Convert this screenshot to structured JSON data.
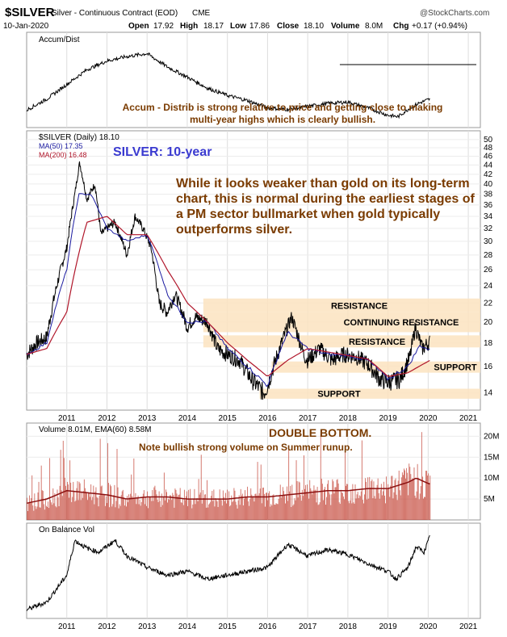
{
  "header": {
    "symbol": "$SILVER",
    "name": "Silver - Continuous Contract (EOD)",
    "exchange": "CME",
    "watermark": "@StockCharts.com",
    "date": "10-Jan-2020",
    "open_label": "Open",
    "open": "17.92",
    "high_label": "High",
    "high": "18.17",
    "low_label": "Low",
    "low": "17.86",
    "close_label": "Close",
    "close": "18.10",
    "volume_label": "Volume",
    "volume": "8.0M",
    "chg_label": "Chg",
    "chg": "+0.17 (+0.94%)"
  },
  "colors": {
    "price": "#000000",
    "ma50": "#1a1aa0",
    "ma200": "#b0162a",
    "volume": "#c0392b",
    "band": "#fbe3bf",
    "annotation": "#7a3b00",
    "title_blue": "#3a3ad0"
  },
  "chart_data": [
    {
      "type": "line",
      "panel": "Accum/Dist",
      "legend": "Accum/Dist",
      "x": [
        2010.0,
        2010.5,
        2011.0,
        2011.5,
        2012.0,
        2012.5,
        2013.0,
        2013.5,
        2014.0,
        2014.5,
        2015.0,
        2015.5,
        2016.0,
        2016.5,
        2017.0,
        2017.5,
        2018.0,
        2018.5,
        2019.0,
        2019.25,
        2019.5,
        2019.75,
        2020.04
      ],
      "y": [
        5,
        20,
        40,
        60,
        72,
        78,
        82,
        64,
        50,
        35,
        25,
        18,
        8,
        6,
        10,
        14,
        16,
        8,
        -2,
        -4,
        6,
        14,
        20
      ],
      "ylim": [
        0,
        100
      ],
      "note": "Accum - Distrib is strong relative to price and getting close to making multi-year highs which is clearly bullish."
    },
    {
      "type": "line",
      "panel": "Price",
      "legend": [
        "$SILVER (Daily) 18.10",
        "MA(50) 17.35",
        "MA(200) 16.48"
      ],
      "title": "SILVER: 10-year",
      "note": "While it looks weaker than gold on its long-term chart, this is normal during the earliest stages of a PM sector bullmarket when gold typically outperforms silver.",
      "series": [
        {
          "name": "$SILVER (Daily) 18.10",
          "x": [
            2010.0,
            2010.25,
            2010.5,
            2010.75,
            2011.0,
            2011.2,
            2011.32,
            2011.5,
            2011.7,
            2011.85,
            2012.0,
            2012.2,
            2012.5,
            2012.7,
            2012.9,
            2013.1,
            2013.3,
            2013.5,
            2013.7,
            2014.0,
            2014.2,
            2014.5,
            2014.75,
            2015.0,
            2015.3,
            2015.6,
            2015.9,
            2016.0,
            2016.3,
            2016.6,
            2016.9,
            2017.0,
            2017.3,
            2017.6,
            2017.9,
            2018.2,
            2018.5,
            2018.8,
            2019.0,
            2019.3,
            2019.55,
            2019.68,
            2019.85,
            2020.04
          ],
          "y": [
            17,
            18,
            18.5,
            24,
            29,
            38,
            44.5,
            37,
            40,
            31,
            32,
            33,
            28,
            34,
            32,
            29,
            22,
            21,
            23,
            19.5,
            20.5,
            20,
            17.5,
            17,
            16.5,
            15,
            14,
            14.5,
            17.5,
            20.5,
            17,
            16.5,
            17.5,
            16.5,
            17,
            16.8,
            16.2,
            15,
            14.8,
            15,
            16.8,
            19.5,
            17.5,
            18.1
          ]
        },
        {
          "name": "MA(50) 17.35",
          "x": [
            2010.0,
            2010.5,
            2011.0,
            2011.3,
            2011.6,
            2012.0,
            2012.5,
            2013.0,
            2013.5,
            2014.0,
            2014.5,
            2015.0,
            2015.5,
            2016.0,
            2016.5,
            2017.0,
            2017.5,
            2018.0,
            2018.5,
            2019.0,
            2019.5,
            2019.8,
            2020.04
          ],
          "y": [
            17,
            18,
            26,
            38,
            38,
            32,
            30,
            31,
            23,
            20,
            20,
            17.5,
            16,
            14.5,
            19,
            17.5,
            17,
            16.9,
            16.5,
            15,
            16,
            17.8,
            17.35
          ]
        },
        {
          "name": "MA(200) 16.48",
          "x": [
            2010.0,
            2010.5,
            2011.0,
            2011.5,
            2012.0,
            2012.5,
            2013.0,
            2013.5,
            2014.0,
            2014.5,
            2015.0,
            2015.5,
            2016.0,
            2016.5,
            2017.0,
            2017.5,
            2018.0,
            2018.5,
            2019.0,
            2019.5,
            2020.04
          ],
          "y": [
            17,
            17.5,
            21,
            33,
            34,
            31,
            31,
            26,
            22,
            20,
            18,
            16.5,
            15.2,
            16.5,
            17.5,
            17.2,
            16.9,
            16.6,
            15.2,
            15.5,
            16.48
          ]
        }
      ],
      "yticks": [
        14,
        16,
        18,
        20,
        22,
        24,
        26,
        28,
        30,
        32,
        34,
        36,
        38,
        40,
        42,
        44,
        46,
        48,
        50
      ],
      "ylim": [
        13,
        51
      ],
      "scale": "log",
      "bands": [
        {
          "label": "RESISTANCE",
          "from": 21.0,
          "to": 22.5,
          "start": 2014.4
        },
        {
          "label": "CONTINUING RESISTANCE",
          "from": 19.0,
          "to": 21.0,
          "start": 2014.4
        },
        {
          "label": "RESISTANCE",
          "from": 17.6,
          "to": 18.7,
          "start": 2014.4
        },
        {
          "label": "SUPPORT",
          "from": 15.5,
          "to": 16.4,
          "start": 2016.1
        },
        {
          "label": "SUPPORT",
          "from": 13.6,
          "to": 14.3,
          "start": 2015.8
        }
      ]
    },
    {
      "type": "bar",
      "panel": "Volume",
      "legend": "Volume 8.01M, EMA(60) 8.58M",
      "title": "DOUBLE BOTTOM.",
      "note": "Note bullish strong volume on Summer runup.",
      "x": [
        2010.0,
        2010.5,
        2011.0,
        2011.5,
        2012.0,
        2012.5,
        2013.0,
        2013.5,
        2014.0,
        2014.5,
        2015.0,
        2015.5,
        2016.0,
        2016.5,
        2017.0,
        2017.5,
        2018.0,
        2018.5,
        2019.0,
        2019.5,
        2019.7,
        2020.04
      ],
      "ema": [
        4,
        5,
        7,
        6.5,
        6,
        5,
        5.5,
        5.5,
        5,
        5,
        5,
        5.5,
        5.5,
        6,
        6.5,
        7,
        7,
        7.5,
        7.5,
        9,
        10,
        8.58
      ],
      "yticks_labels": [
        "5M",
        "10M",
        "15M",
        "20M"
      ],
      "yticks": [
        5,
        10,
        15,
        20
      ],
      "ylim": [
        0,
        22
      ]
    },
    {
      "type": "line",
      "panel": "On Balance Vol",
      "legend": "On Balance Vol",
      "x": [
        2010.0,
        2010.5,
        2011.0,
        2011.2,
        2011.5,
        2011.8,
        2012.2,
        2012.5,
        2013.0,
        2013.5,
        2014.0,
        2014.5,
        2015.0,
        2015.5,
        2016.0,
        2016.5,
        2017.0,
        2017.5,
        2018.0,
        2018.5,
        2019.0,
        2019.2,
        2019.5,
        2019.7,
        2019.9,
        2020.04
      ],
      "y": [
        0,
        10,
        45,
        90,
        80,
        75,
        90,
        70,
        55,
        45,
        50,
        40,
        45,
        50,
        55,
        85,
        70,
        78,
        72,
        60,
        50,
        40,
        55,
        82,
        75,
        95
      ],
      "ylim": [
        -5,
        100
      ]
    }
  ],
  "x_axis": {
    "labels": [
      "2011",
      "2012",
      "2013",
      "2014",
      "2015",
      "2016",
      "2017",
      "2018",
      "2019",
      "2020",
      "2021"
    ],
    "values": [
      2011,
      2012,
      2013,
      2014,
      2015,
      2016,
      2017,
      2018,
      2019,
      2020,
      2021
    ]
  }
}
